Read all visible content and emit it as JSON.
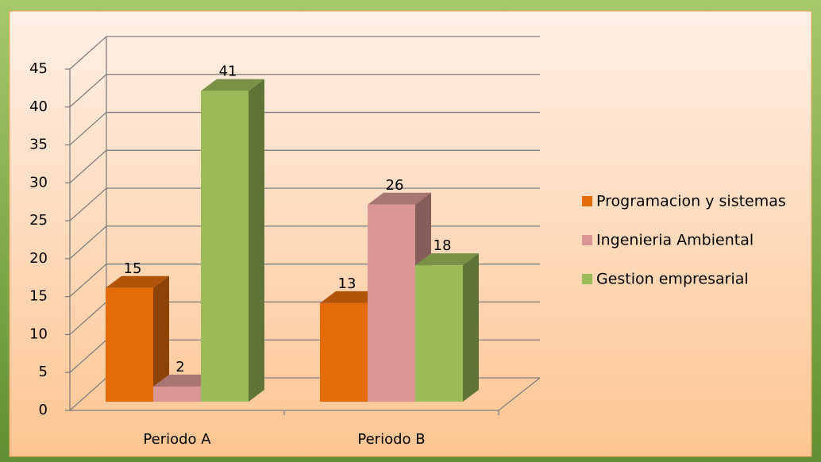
{
  "chart_data": {
    "type": "bar3d",
    "categories": [
      "Periodo A",
      "Periodo B"
    ],
    "series": [
      {
        "name": "Programacion y sistemas",
        "color": "#e36c09",
        "values": [
          15,
          13
        ]
      },
      {
        "name": "Ingenieria Ambiental",
        "color": "#d99694",
        "values": [
          2,
          26
        ]
      },
      {
        "name": "Gestion empresarial",
        "color": "#9bbb59",
        "values": [
          41,
          18
        ]
      }
    ],
    "ylim": [
      0,
      45
    ],
    "yticks": [
      0,
      5,
      10,
      15,
      20,
      25,
      30,
      35,
      40,
      45
    ],
    "grid": true,
    "legend": "right"
  }
}
